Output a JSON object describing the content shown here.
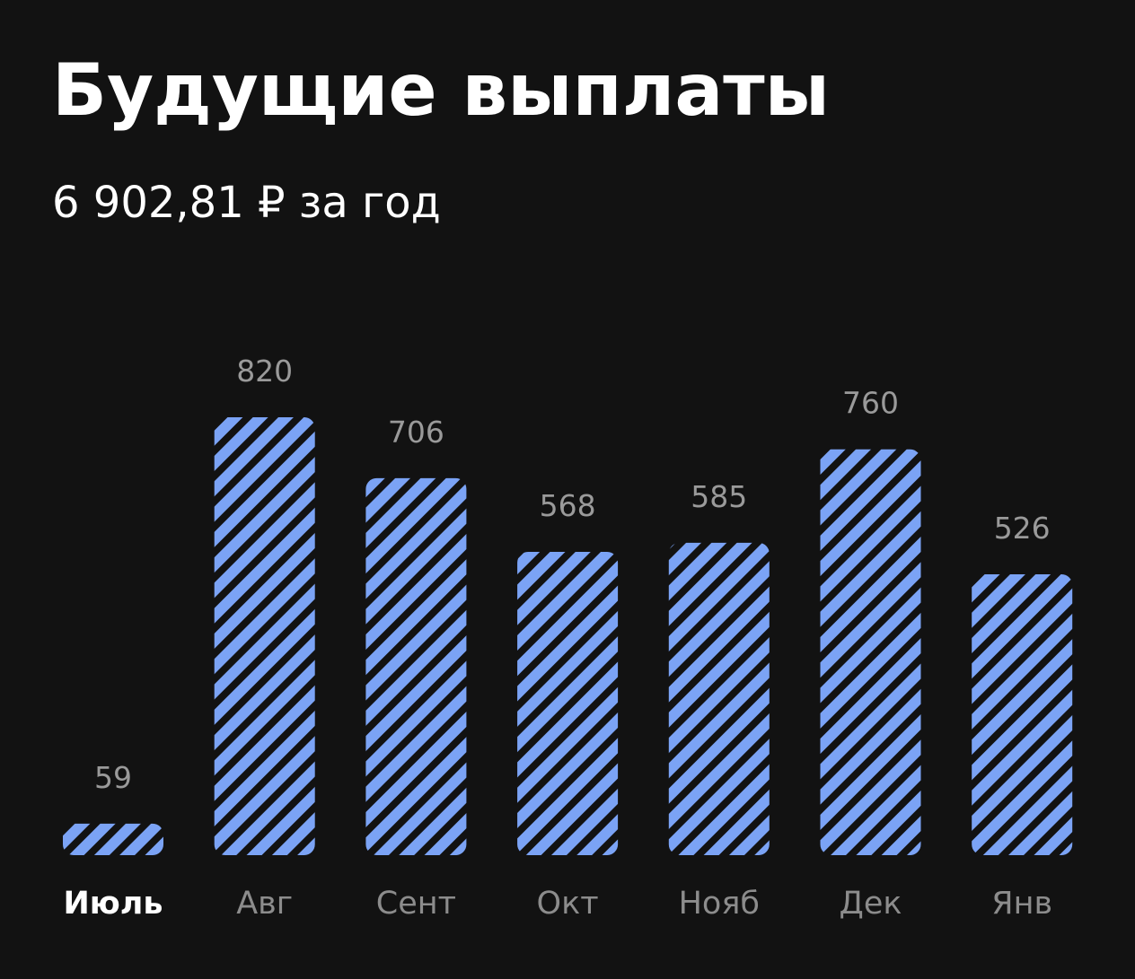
{
  "chart_data": {
    "type": "bar",
    "title": "Будущие выплаты",
    "subtitle": "6 902,81 ₽ за год",
    "categories": [
      "Июль",
      "Авг",
      "Сент",
      "Окт",
      "Нояб",
      "Дек",
      "Янв"
    ],
    "values": [
      59,
      820,
      706,
      568,
      585,
      760,
      526
    ],
    "color": "#7ba3f5"
  }
}
